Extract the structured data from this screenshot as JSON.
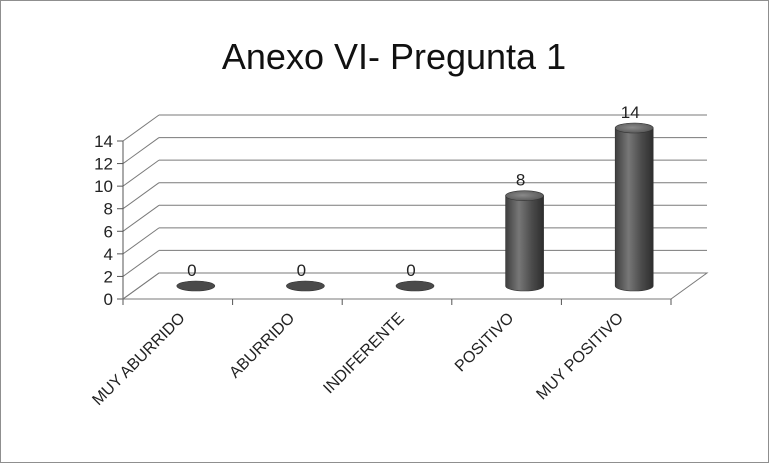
{
  "chart_data": {
    "type": "bar",
    "title": "Anexo VI- Pregunta 1",
    "xlabel": "",
    "ylabel": "",
    "categories": [
      "MUY ABURRIDO",
      "ABURRIDO",
      "INDIFERENTE",
      "POSITIVO",
      "MUY POSITIVO"
    ],
    "values": [
      0,
      0,
      0,
      8,
      14
    ],
    "data_labels": [
      "0",
      "0",
      "0",
      "8",
      "14"
    ],
    "y_ticks": [
      "0",
      "2",
      "4",
      "6",
      "8",
      "10",
      "12",
      "14"
    ],
    "ylim": [
      0,
      14
    ],
    "grid": true,
    "legend": "none",
    "bar_color": "#5a5a5a",
    "bar_style": "3d-cylinder"
  }
}
